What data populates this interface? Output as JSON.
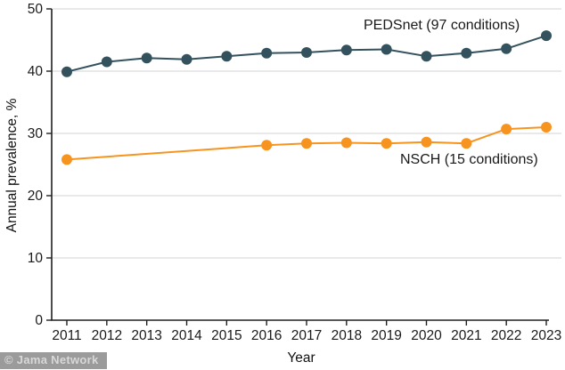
{
  "watermark": {
    "text": "© Jama Network"
  },
  "chart_data": {
    "type": "line",
    "title": "",
    "xlabel": "Year",
    "ylabel": "Annual prevalence, %",
    "ylim": [
      0,
      50
    ],
    "y_ticks": [
      0,
      10,
      20,
      30,
      40,
      50
    ],
    "x_ticks": [
      2011,
      2012,
      2013,
      2014,
      2015,
      2016,
      2017,
      2018,
      2019,
      2020,
      2021,
      2022,
      2023
    ],
    "grid": "horizontal",
    "legend_position": "inline-annotations",
    "colors": {
      "pedsnet": "#33525E",
      "nsch": "#F79420",
      "gridline": "#dcdcdc",
      "axis": "#1f1f1f"
    },
    "series": [
      {
        "name": "PEDSnet",
        "label_text": "PEDSnet (97 conditions)",
        "color": "#33525E",
        "x": [
          2011,
          2012,
          2013,
          2014,
          2015,
          2016,
          2017,
          2018,
          2019,
          2020,
          2021,
          2022,
          2023
        ],
        "values": [
          39.9,
          41.5,
          42.1,
          41.9,
          42.4,
          42.9,
          43.0,
          43.4,
          43.5,
          42.4,
          42.9,
          43.6,
          45.7
        ]
      },
      {
        "name": "NSCH",
        "label_text": "NSCH (15 conditions)",
        "color": "#F79420",
        "x": [
          2011,
          2016,
          2017,
          2018,
          2019,
          2020,
          2021,
          2022,
          2023
        ],
        "values": [
          25.8,
          28.1,
          28.4,
          28.5,
          28.4,
          28.6,
          28.4,
          30.7,
          31.0
        ]
      }
    ]
  }
}
